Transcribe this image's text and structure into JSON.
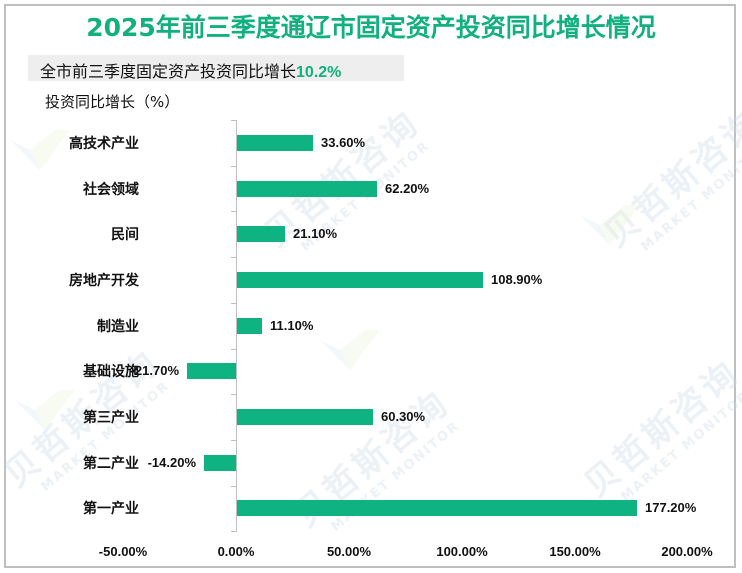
{
  "title": "2025年前三季度通辽市固定资产投资同比增长情况",
  "subtitle": {
    "text": "全市前三季度固定资产投资同比增长",
    "highlight": "10.2%"
  },
  "ylabel": "投资同比增长（%）",
  "watermark": {
    "cn": "贝哲斯咨询",
    "en": "MARKET MONITOR"
  },
  "colors": {
    "title": "#12b07f",
    "bar": "#0fb381",
    "axis": "#bfbfbf",
    "subtitle_bg": "#eeeeee"
  },
  "chart_data": {
    "type": "bar",
    "orientation": "horizontal",
    "title": "2025年前三季度通辽市固定资产投资同比增长情况",
    "subtitle": "全市前三季度固定资产投资同比增长10.2%",
    "xlabel": "",
    "ylabel": "投资同比增长（%）",
    "categories": [
      "高技术产业",
      "社会领域",
      "民间",
      "房地产开发",
      "制造业",
      "基础设施",
      "第三产业",
      "第二产业",
      "第一产业"
    ],
    "values": [
      33.6,
      62.2,
      21.1,
      108.9,
      11.1,
      -21.7,
      60.3,
      -14.2,
      177.2
    ],
    "labels": [
      "33.60%",
      "62.20%",
      "21.10%",
      "108.90%",
      "11.10%",
      "-21.70%",
      "60.30%",
      "-14.20%",
      "177.20%"
    ],
    "xlim": [
      -50,
      200
    ],
    "xticks": [
      "-50.00%",
      "0.00%",
      "50.00%",
      "100.00%",
      "150.00%",
      "200.00%"
    ],
    "grid": false,
    "legend": null
  }
}
